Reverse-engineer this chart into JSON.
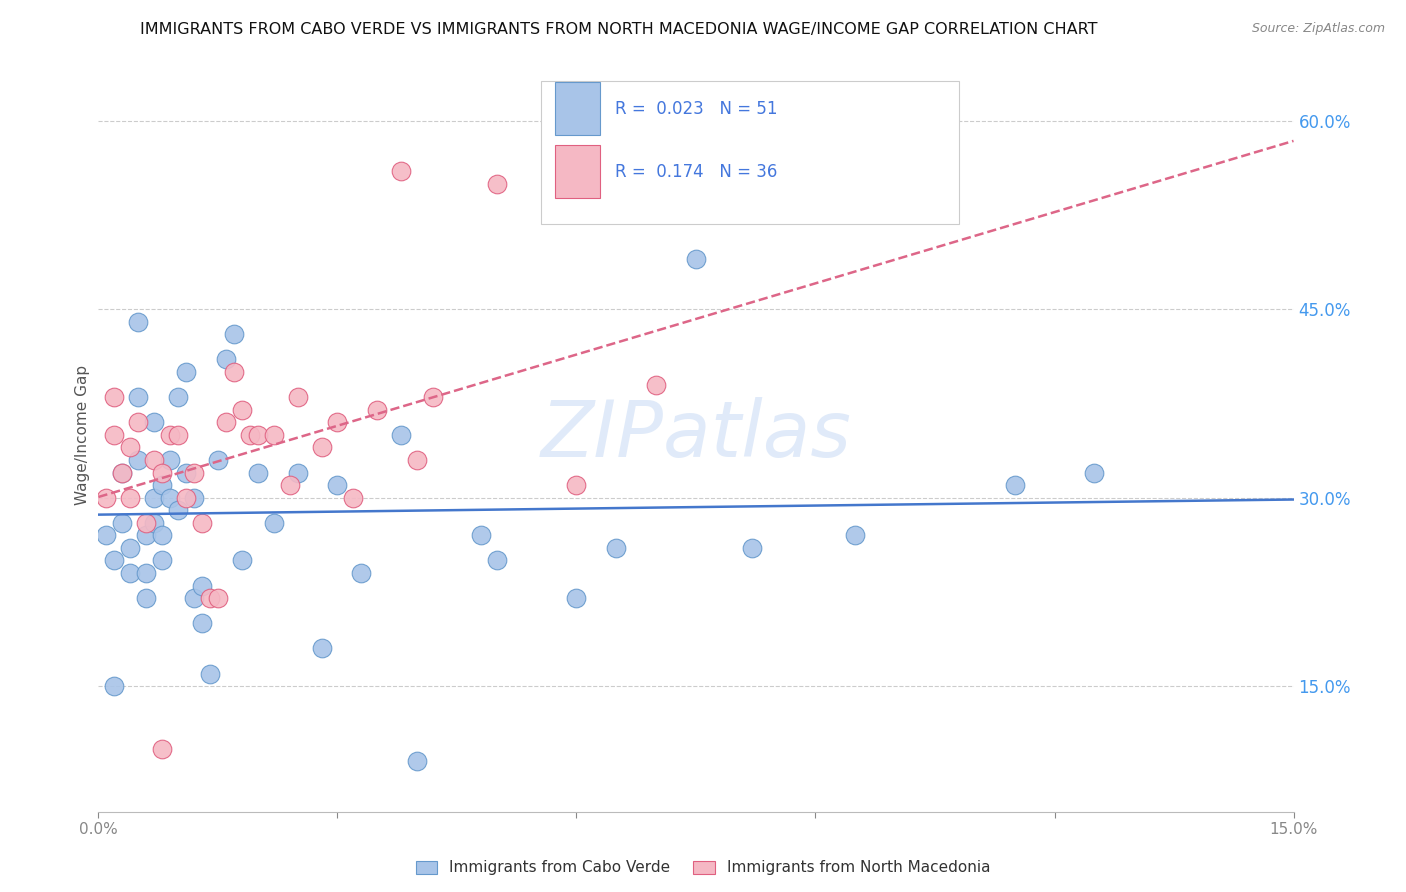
{
  "title": "IMMIGRANTS FROM CABO VERDE VS IMMIGRANTS FROM NORTH MACEDONIA WAGE/INCOME GAP CORRELATION CHART",
  "source": "Source: ZipAtlas.com",
  "ylabel": "Wage/Income Gap",
  "y_ticks": [
    0.15,
    0.3,
    0.45,
    0.6
  ],
  "y_tick_labels": [
    "15.0%",
    "30.0%",
    "45.0%",
    "60.0%"
  ],
  "x_ticks": [
    0.0,
    0.03,
    0.06,
    0.09,
    0.12,
    0.15
  ],
  "x_tick_labels": [
    "0.0%",
    "",
    "",
    "",
    "",
    "15.0%"
  ],
  "xlim": [
    0.0,
    0.15
  ],
  "ylim": [
    0.05,
    0.65
  ],
  "cabo_verde_color": "#a8c4e8",
  "cabo_verde_edge": "#6699cc",
  "north_mac_color": "#f5b8c4",
  "north_mac_edge": "#e06080",
  "trend_blue_color": "#4477cc",
  "trend_pink_color": "#dd6688",
  "legend_text_color": "#4477dd",
  "watermark": "ZIPatlas",
  "cabo_verde_x": [
    0.001,
    0.002,
    0.002,
    0.003,
    0.003,
    0.004,
    0.004,
    0.005,
    0.005,
    0.005,
    0.006,
    0.006,
    0.006,
    0.007,
    0.007,
    0.007,
    0.008,
    0.008,
    0.008,
    0.009,
    0.009,
    0.01,
    0.01,
    0.011,
    0.011,
    0.012,
    0.012,
    0.013,
    0.013,
    0.014,
    0.015,
    0.016,
    0.017,
    0.018,
    0.02,
    0.022,
    0.025,
    0.03,
    0.033,
    0.038,
    0.048,
    0.05,
    0.06,
    0.065,
    0.075,
    0.082,
    0.095,
    0.115,
    0.125,
    0.04,
    0.028
  ],
  "cabo_verde_y": [
    0.27,
    0.25,
    0.15,
    0.28,
    0.32,
    0.24,
    0.26,
    0.33,
    0.38,
    0.44,
    0.27,
    0.24,
    0.22,
    0.3,
    0.28,
    0.36,
    0.25,
    0.27,
    0.31,
    0.3,
    0.33,
    0.29,
    0.38,
    0.4,
    0.32,
    0.3,
    0.22,
    0.23,
    0.2,
    0.16,
    0.33,
    0.41,
    0.43,
    0.25,
    0.32,
    0.28,
    0.32,
    0.31,
    0.24,
    0.35,
    0.27,
    0.25,
    0.22,
    0.26,
    0.49,
    0.26,
    0.27,
    0.31,
    0.32,
    0.09,
    0.18
  ],
  "north_mac_x": [
    0.001,
    0.002,
    0.002,
    0.003,
    0.004,
    0.004,
    0.005,
    0.006,
    0.007,
    0.008,
    0.009,
    0.01,
    0.011,
    0.012,
    0.013,
    0.014,
    0.015,
    0.016,
    0.017,
    0.018,
    0.019,
    0.02,
    0.022,
    0.024,
    0.025,
    0.028,
    0.03,
    0.032,
    0.035,
    0.038,
    0.04,
    0.042,
    0.05,
    0.06,
    0.07,
    0.008
  ],
  "north_mac_y": [
    0.3,
    0.35,
    0.38,
    0.32,
    0.34,
    0.3,
    0.36,
    0.28,
    0.33,
    0.32,
    0.35,
    0.35,
    0.3,
    0.32,
    0.28,
    0.22,
    0.22,
    0.36,
    0.4,
    0.37,
    0.35,
    0.35,
    0.35,
    0.31,
    0.38,
    0.34,
    0.36,
    0.3,
    0.37,
    0.56,
    0.33,
    0.38,
    0.55,
    0.31,
    0.39,
    0.1
  ]
}
